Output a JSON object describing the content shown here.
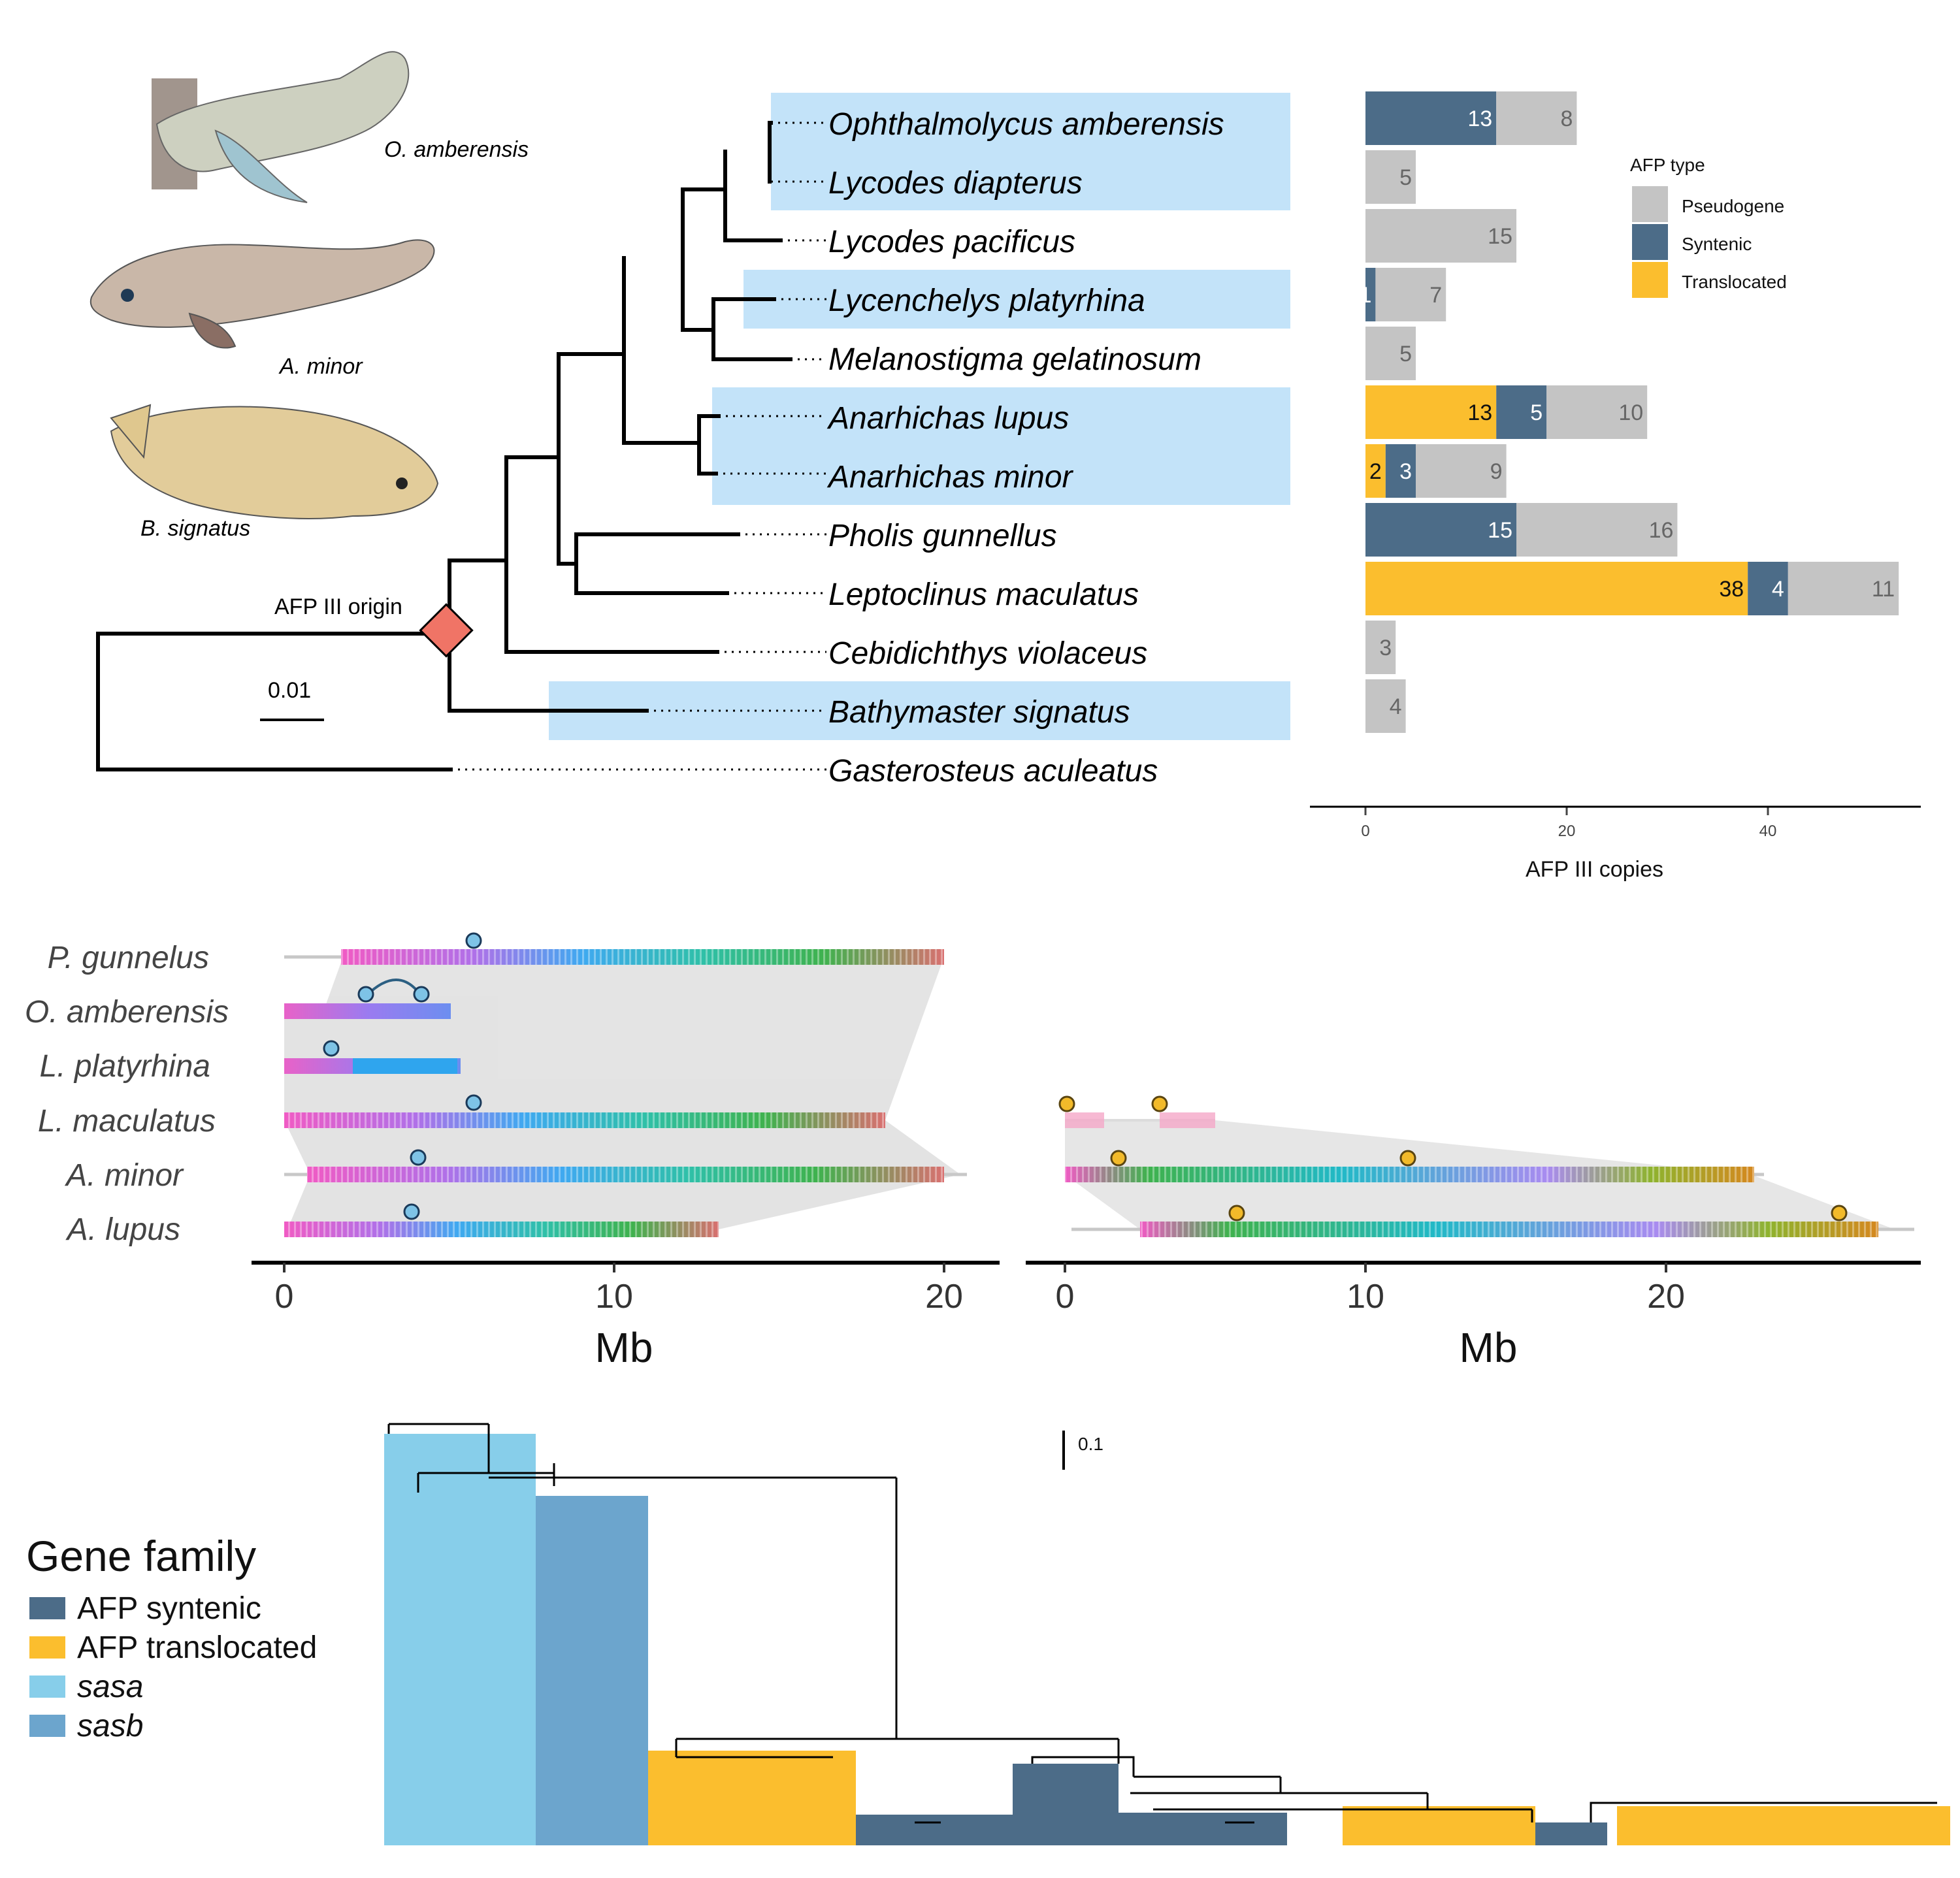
{
  "panelA": {
    "fish_labels": [
      "O. amberensis",
      "A. minor",
      "B. signatus"
    ],
    "origin_label": "AFP III origin",
    "scale_label": "0.01",
    "species": [
      "Ophthalmolycus amberensis",
      "Lycodes diapterus",
      "Lycodes pacificus",
      "Lycenchelys platyrhina",
      "Melanostigma gelatinosum",
      "Anarhichas lupus",
      "Anarhichas minor",
      "Pholis gunnellus",
      "Leptoclinus maculatus",
      "Cebidichthys violaceus",
      "Bathymaster signatus",
      "Gasterosteus aculeatus"
    ],
    "legend": {
      "title": "AFP type",
      "items": [
        "Pseudogene",
        "Syntenic",
        "Translocated"
      ]
    },
    "colors": {
      "Translocated": "#FBBE2E",
      "Syntenic": "#4C6C88",
      "Pseudogene": "#C4C4C4",
      "highlight": "#C3E3F9"
    }
  },
  "chart_data": [
    {
      "type": "bar",
      "orientation": "horizontal",
      "stacked": true,
      "categories": [
        "Ophthalmolycus amberensis",
        "Lycodes diapterus",
        "Lycodes pacificus",
        "Lycenchelys platyrhina",
        "Melanostigma gelatinosum",
        "Anarhichas lupus",
        "Anarhichas minor",
        "Pholis gunnellus",
        "Leptoclinus maculatus",
        "Cebidichthys violaceus",
        "Bathymaster signatus"
      ],
      "series": [
        {
          "name": "Translocated",
          "values": [
            0,
            0,
            0,
            0,
            0,
            13,
            2,
            0,
            38,
            0,
            0
          ]
        },
        {
          "name": "Syntenic",
          "values": [
            13,
            0,
            0,
            1,
            0,
            5,
            3,
            15,
            4,
            0,
            0
          ]
        },
        {
          "name": "Pseudogene",
          "values": [
            8,
            5,
            15,
            7,
            5,
            10,
            9,
            16,
            11,
            3,
            4
          ]
        }
      ],
      "xlabel": "AFP III  copies",
      "xticks": [
        "0",
        "20",
        "40"
      ],
      "xlim": [
        -5,
        56
      ],
      "legend_title": "AFP type",
      "legend_position": "top-right"
    }
  ],
  "panelB": {
    "genomes": [
      "P. gunnelus",
      "O. amberensis",
      "L. platyrhina",
      "L. maculatus",
      "A. minor",
      "A. lupus"
    ],
    "xlabel": "Mb",
    "xticks_left": [
      "0",
      "10",
      "20"
    ],
    "xticks_right": [
      "0",
      "10",
      "20"
    ]
  },
  "panelC": {
    "scale_label": "0.1",
    "legend_title": "Gene family",
    "legend_items": [
      "AFP syntenic",
      "AFP translocated",
      "sasa",
      "sasb"
    ],
    "legend_colors": [
      "#4C6C88",
      "#FBBE2E",
      "#87CEEA",
      "#6CA5CD"
    ]
  }
}
